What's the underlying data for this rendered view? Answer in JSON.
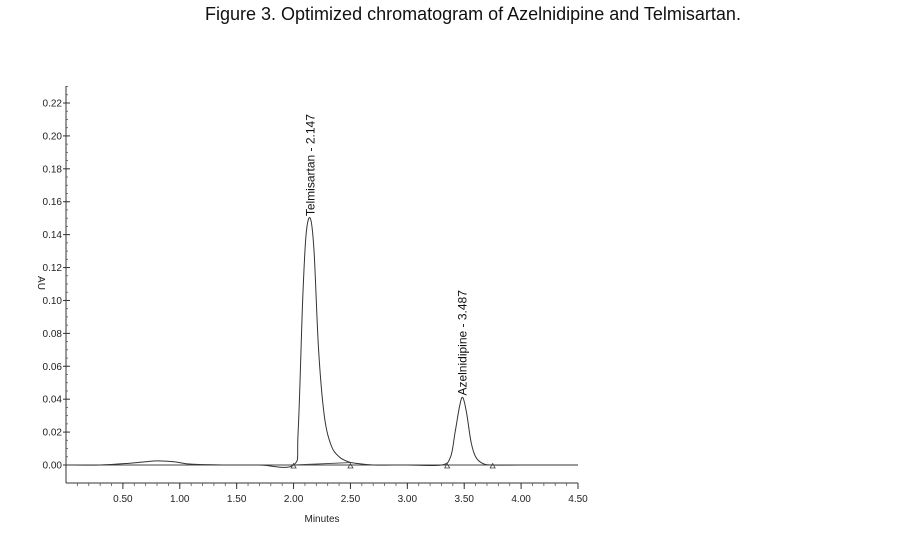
{
  "caption": {
    "figure_label": "Figure 3",
    "text": ". Optimized chromatogram of Azelnidipine and Telmisartan."
  },
  "chart_data": {
    "type": "line",
    "title": "Figure 3. Optimized chromatogram of Azelnidipine and Telmisartan.",
    "xlabel": "Minutes",
    "ylabel": "AU",
    "xlim": [
      0.0,
      4.5
    ],
    "ylim": [
      -0.01,
      0.23
    ],
    "x_ticks": [
      "0.50",
      "1.00",
      "1.50",
      "2.00",
      "2.50",
      "3.00",
      "3.50",
      "4.00",
      "4.50"
    ],
    "y_ticks": [
      "0.00",
      "0.02",
      "0.04",
      "0.06",
      "0.08",
      "0.10",
      "0.12",
      "0.14",
      "0.16",
      "0.18",
      "0.20",
      "0.22"
    ],
    "grid": false,
    "legend": "none",
    "series": [
      {
        "x": [
          0.0,
          0.3,
          0.55,
          0.7,
          0.8,
          0.95,
          1.1,
          1.4,
          1.7,
          2.0,
          2.04,
          2.08,
          2.11,
          2.147,
          2.18,
          2.22,
          2.27,
          2.33,
          2.4,
          2.48,
          2.55,
          2.7,
          3.0,
          3.3,
          3.38,
          3.42,
          3.46,
          3.487,
          3.52,
          3.56,
          3.6,
          3.66,
          3.75,
          4.0,
          4.5
        ],
        "values": [
          0.0,
          0.0,
          0.001,
          0.002,
          0.0025,
          0.002,
          0.0005,
          0.0,
          0.0,
          0.0,
          0.02,
          0.1,
          0.14,
          0.15,
          0.13,
          0.07,
          0.03,
          0.012,
          0.005,
          0.002,
          0.001,
          0.0,
          0.0,
          0.0,
          0.005,
          0.02,
          0.036,
          0.041,
          0.032,
          0.014,
          0.005,
          0.001,
          0.0,
          0.0,
          0.0
        ]
      }
    ],
    "peaks": [
      {
        "label": "Telmisartan - 2.147",
        "x": 2.147,
        "y": 0.15
      },
      {
        "label": "Azelnidipine - 3.487",
        "x": 3.487,
        "y": 0.041
      }
    ],
    "integration_markers_x": [
      2.0,
      2.5,
      3.35,
      3.75
    ]
  }
}
